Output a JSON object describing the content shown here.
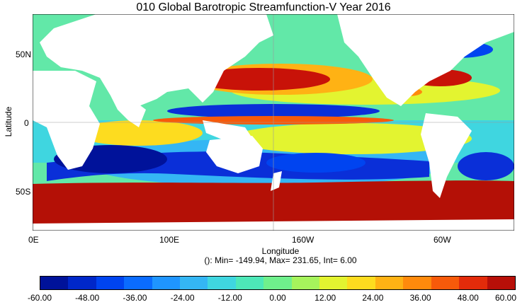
{
  "title": "010 Global  Barotropic Streamfunction-V Year 2016",
  "y_axis": {
    "label": "Latitude",
    "ticks": [
      "50N",
      "0",
      "50S"
    ]
  },
  "x_axis": {
    "label": "Longitude",
    "ticks": [
      "0E",
      "100E",
      "160W",
      "60W"
    ]
  },
  "stats": "(): Min= -149.94, Max= 231.65, Int= 6.00",
  "colorbar": {
    "tick_labels": [
      "-60.00",
      "-48.00",
      "-36.00",
      "-24.00",
      "-12.00",
      "0.00",
      "12.00",
      "24.00",
      "36.00",
      "48.00",
      "60.00"
    ],
    "colors": [
      "#00129a",
      "#0027c9",
      "#0044f0",
      "#0a6cff",
      "#1f95ff",
      "#34b6f4",
      "#3fd6e0",
      "#4de8b8",
      "#6ff08c",
      "#a6f45c",
      "#e3f430",
      "#fddc1f",
      "#ffb214",
      "#ff8a0c",
      "#f75a0a",
      "#e32b0a",
      "#b80f08"
    ]
  },
  "map_colors": {
    "land": "#ffffff",
    "neutral": "#62e8a8",
    "gyre_positive": "#c81208",
    "southern_ocean": "#b41006",
    "gyre_negative": "#0a2fd8"
  }
}
